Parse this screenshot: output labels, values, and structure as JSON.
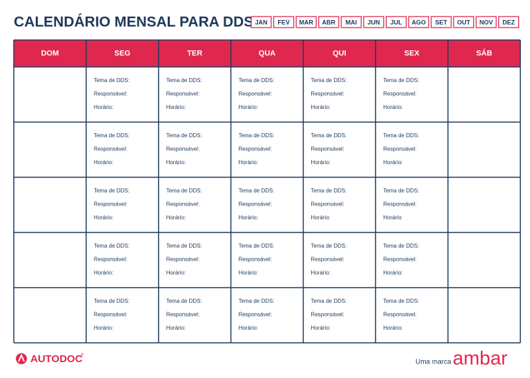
{
  "header": {
    "title": "CALENDÁRIO MENSAL PARA DDS",
    "months": [
      "JAN",
      "FEV",
      "MAR",
      "ABR",
      "MAI",
      "JUN",
      "JUL",
      "AGO",
      "SET",
      "OUT",
      "NOV",
      "DEZ"
    ]
  },
  "table": {
    "days": [
      "DOM",
      "SEG",
      "TER",
      "QUA",
      "QUI",
      "SEX",
      "SÁB"
    ],
    "fields": [
      "Tema de DDS:",
      "Responsável:",
      "Horário:"
    ]
  },
  "footer": {
    "brand": "AUTODOC",
    "brand_mark": "®",
    "tagline": "Uma marca",
    "company": "ambar"
  }
}
